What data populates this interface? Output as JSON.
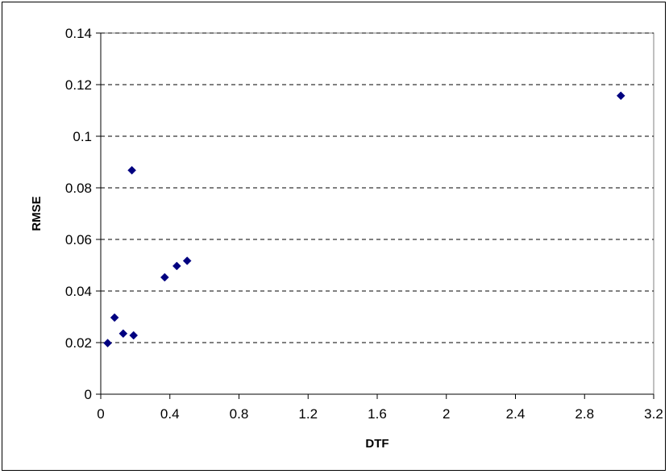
{
  "chart_data": {
    "type": "scatter",
    "title": "",
    "xlabel": "DTF",
    "ylabel": "RMSE",
    "xlim": [
      0,
      3.2
    ],
    "ylim": [
      0,
      0.14
    ],
    "x_ticks": [
      "0",
      "0.4",
      "0.8",
      "1.2",
      "1.6",
      "2",
      "2.4",
      "2.8",
      "3.2"
    ],
    "y_ticks": [
      "0",
      "0.02",
      "0.04",
      "0.06",
      "0.08",
      "0.1",
      "0.12",
      "0.14"
    ],
    "grid": "horizontal-dashed",
    "legend": "none",
    "marker": "diamond",
    "marker_color": "#000080",
    "series": [
      {
        "points": [
          [
            0.04,
            0.0198
          ],
          [
            0.08,
            0.0297
          ],
          [
            0.13,
            0.0235
          ],
          [
            0.18,
            0.0868
          ],
          [
            0.19,
            0.0228
          ],
          [
            0.37,
            0.0453
          ],
          [
            0.44,
            0.0497
          ],
          [
            0.5,
            0.0517
          ],
          [
            3.01,
            0.1157
          ]
        ]
      }
    ]
  }
}
